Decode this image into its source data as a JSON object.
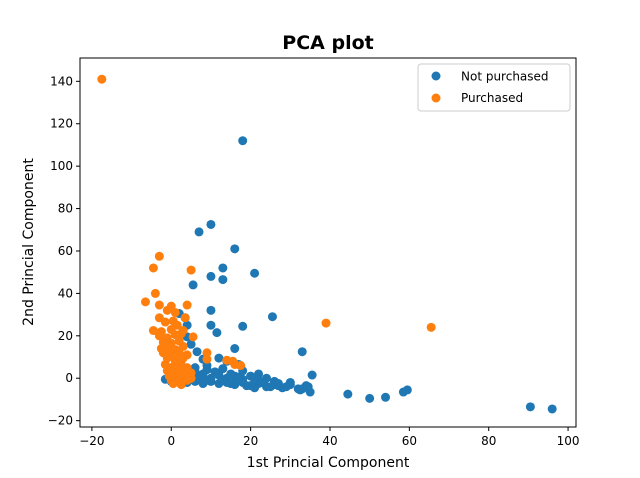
{
  "chart_data": {
    "type": "scatter",
    "title": "PCA plot",
    "xlabel": "1st Princial Component",
    "ylabel": "2nd Princial Component",
    "xlim": [
      -23,
      102
    ],
    "ylim": [
      -23,
      151
    ],
    "xticks": [
      -20,
      0,
      20,
      40,
      60,
      80,
      100
    ],
    "yticks": [
      -20,
      0,
      20,
      40,
      60,
      80,
      100,
      120,
      140
    ],
    "grid": false,
    "legend_position": "top-right",
    "series": [
      {
        "name": "Not purchased",
        "color": "#1f77b4",
        "points": [
          [
            18,
            112
          ],
          [
            10,
            72.5
          ],
          [
            7,
            69
          ],
          [
            16,
            61
          ],
          [
            13,
            52
          ],
          [
            21,
            49.5
          ],
          [
            10,
            48
          ],
          [
            13,
            46.5
          ],
          [
            5.5,
            44
          ],
          [
            10,
            32
          ],
          [
            2,
            30.5
          ],
          [
            3.5,
            28.5
          ],
          [
            25.5,
            29
          ],
          [
            4,
            25
          ],
          [
            10,
            25
          ],
          [
            18,
            24.5
          ],
          [
            11.5,
            21.5
          ],
          [
            4,
            19.5
          ],
          [
            5,
            16
          ],
          [
            16,
            14
          ],
          [
            6.5,
            12.5
          ],
          [
            33,
            12.5
          ],
          [
            12,
            9.5
          ],
          [
            8,
            9
          ],
          [
            14,
            8
          ],
          [
            2,
            7
          ],
          [
            17,
            6.5
          ],
          [
            9,
            6
          ],
          [
            6,
            5
          ],
          [
            13,
            4.5
          ],
          [
            18,
            3.5
          ],
          [
            22,
            2
          ],
          [
            35.5,
            1.5
          ],
          [
            3,
            2.5
          ],
          [
            1,
            2
          ],
          [
            8,
            2
          ],
          [
            12,
            1.5
          ],
          [
            16,
            1
          ],
          [
            20,
            1
          ],
          [
            24,
            0
          ],
          [
            0,
            1
          ],
          [
            5,
            0
          ],
          [
            10,
            0
          ],
          [
            14,
            0
          ],
          [
            18,
            -0.5
          ],
          [
            22,
            -1
          ],
          [
            26,
            -1.5
          ],
          [
            30,
            -2
          ],
          [
            -1.5,
            -0.5
          ],
          [
            2,
            -1
          ],
          [
            6,
            -1.5
          ],
          [
            10,
            -1.5
          ],
          [
            14,
            -2
          ],
          [
            18,
            -2
          ],
          [
            22,
            -2.5
          ],
          [
            26,
            -3
          ],
          [
            30,
            -3
          ],
          [
            34,
            -3.5
          ],
          [
            4,
            -2
          ],
          [
            8,
            -2.5
          ],
          [
            12,
            -2.5
          ],
          [
            16,
            -3
          ],
          [
            20,
            -3.5
          ],
          [
            24,
            -4
          ],
          [
            28,
            -4.5
          ],
          [
            32,
            -5
          ],
          [
            25,
            -4
          ],
          [
            27,
            -3.5
          ],
          [
            21,
            -4.5
          ],
          [
            19,
            -3.5
          ],
          [
            33,
            -5
          ],
          [
            32.5,
            -5.5
          ],
          [
            34.5,
            -4
          ],
          [
            35,
            -6.5
          ],
          [
            44.5,
            -7.5
          ],
          [
            50,
            -9.5
          ],
          [
            54,
            -9
          ],
          [
            58.5,
            -6.5
          ],
          [
            59.5,
            -5.5
          ],
          [
            90.5,
            -13.5
          ],
          [
            96,
            -14.5
          ],
          [
            -0.5,
            3
          ],
          [
            1,
            4
          ],
          [
            3,
            5
          ],
          [
            6,
            3
          ],
          [
            9,
            4
          ],
          [
            11,
            3
          ],
          [
            15,
            2
          ],
          [
            17,
            0.5
          ],
          [
            21,
            -0.5
          ],
          [
            23,
            -2
          ],
          [
            27,
            -2.5
          ],
          [
            29,
            -4
          ],
          [
            0,
            -1.5
          ],
          [
            2,
            0.5
          ],
          [
            4,
            1.5
          ],
          [
            7,
            0.5
          ],
          [
            9,
            -1
          ],
          [
            13,
            -1
          ],
          [
            15,
            -2.5
          ]
        ]
      },
      {
        "name": "Purchased",
        "color": "#ff7f0e",
        "points": [
          [
            -17.5,
            141
          ],
          [
            -3,
            57.5
          ],
          [
            -4.5,
            52
          ],
          [
            5,
            51
          ],
          [
            -4,
            40
          ],
          [
            -6.5,
            36
          ],
          [
            -3,
            34.5
          ],
          [
            0,
            34
          ],
          [
            4,
            34.5
          ],
          [
            -1,
            32
          ],
          [
            1,
            31
          ],
          [
            3.5,
            28.5
          ],
          [
            -3,
            28.5
          ],
          [
            -1.5,
            26.5
          ],
          [
            0.5,
            27
          ],
          [
            -4.5,
            22.5
          ],
          [
            -2.5,
            22
          ],
          [
            0,
            23
          ],
          [
            3,
            22.5
          ],
          [
            -3,
            20
          ],
          [
            -1,
            19
          ],
          [
            1,
            20.5
          ],
          [
            5.5,
            19.5
          ],
          [
            -2,
            17
          ],
          [
            0,
            16.5
          ],
          [
            2,
            17.5
          ],
          [
            -1,
            14.5
          ],
          [
            1,
            13.5
          ],
          [
            3,
            15
          ],
          [
            -2,
            12
          ],
          [
            0,
            11
          ],
          [
            2,
            12
          ],
          [
            4,
            11
          ],
          [
            -1,
            9.5
          ],
          [
            1,
            8.5
          ],
          [
            3,
            9.5
          ],
          [
            9,
            12
          ],
          [
            9,
            9
          ],
          [
            14,
            8.5
          ],
          [
            15.5,
            8
          ],
          [
            16,
            6.5
          ],
          [
            17.5,
            6
          ],
          [
            -1.5,
            6.5
          ],
          [
            0.5,
            5.5
          ],
          [
            2,
            6.5
          ],
          [
            4,
            5
          ],
          [
            -1,
            3.5
          ],
          [
            1,
            2.5
          ],
          [
            3,
            3.5
          ],
          [
            5,
            2.5
          ],
          [
            -0.5,
            1
          ],
          [
            1.5,
            0.5
          ],
          [
            3.5,
            1
          ],
          [
            5,
            0
          ],
          [
            0,
            -1
          ],
          [
            2,
            -1.5
          ],
          [
            4,
            -1
          ],
          [
            0.5,
            -2.5
          ],
          [
            2.5,
            -3
          ],
          [
            1,
            4.5
          ],
          [
            2.5,
            8
          ],
          [
            0,
            13
          ],
          [
            -2.5,
            14
          ],
          [
            1.5,
            25
          ],
          [
            2.5,
            21
          ],
          [
            39,
            26
          ],
          [
            65.5,
            24
          ]
        ]
      }
    ]
  }
}
